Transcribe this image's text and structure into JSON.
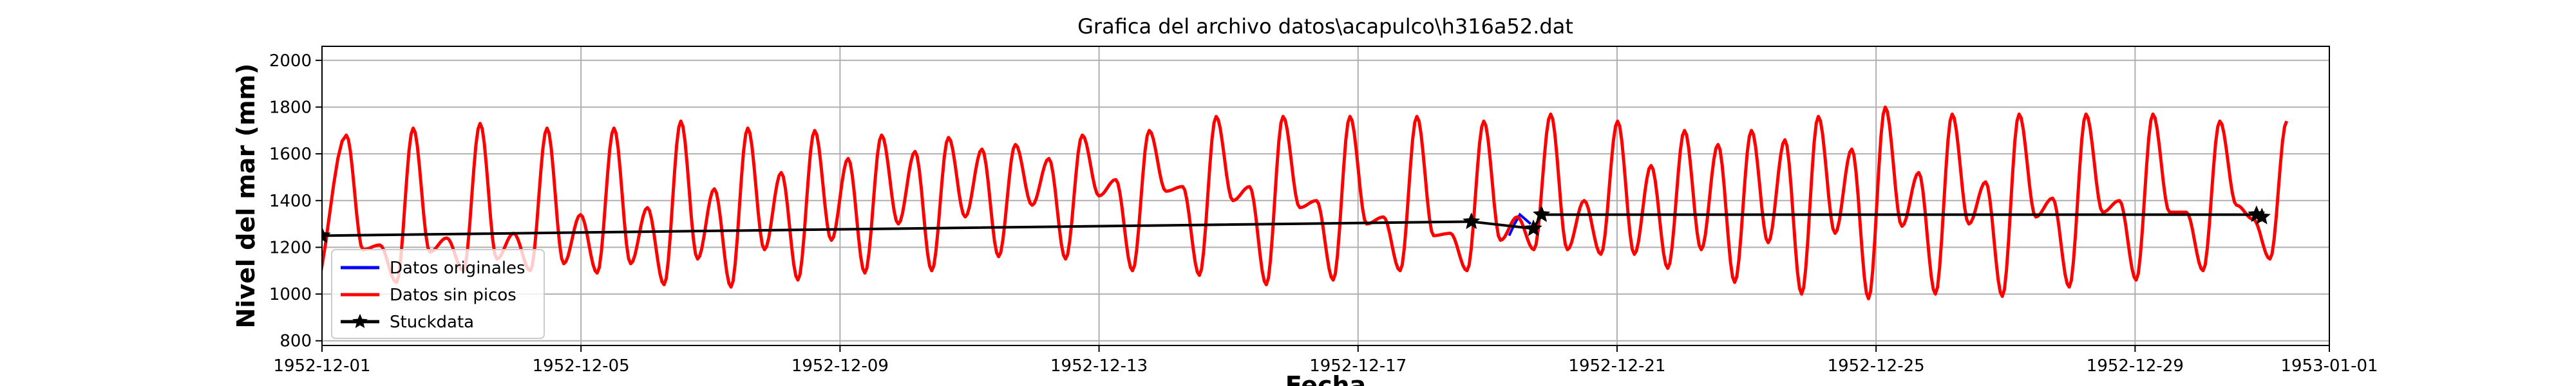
{
  "chart_data": {
    "type": "line",
    "title": "Grafica del archivo datos\\acapulco\\h316a52.dat",
    "xlabel": "Fecha",
    "ylabel": "Nivel del mar (mm)",
    "xlim": [
      "1952-12-01",
      "1953-01-01"
    ],
    "ylim": [
      780,
      2060
    ],
    "grid": true,
    "legend_position": "lower-left",
    "x_ticks": [
      "1952-12-01",
      "1952-12-05",
      "1952-12-09",
      "1952-12-13",
      "1952-12-17",
      "1952-12-21",
      "1952-12-25",
      "1952-12-29",
      "1953-01-01"
    ],
    "y_ticks": [
      800,
      1000,
      1200,
      1400,
      1600,
      1800,
      2000
    ],
    "legend": [
      "Datos originales",
      "Datos sin picos",
      "Stuckdata"
    ],
    "series": [
      {
        "name": "Datos originales",
        "color": "#0000ff",
        "note": "hidden beneath Datos sin picos except for short segments",
        "x": [
          "1952-12-19 08:00",
          "1952-12-19 10:00",
          "1952-12-19 12:00",
          "1952-12-19 14:00",
          "1952-12-19 16:00"
        ],
        "y": [
          1250,
          1300,
          1340,
          1320,
          1300
        ]
      },
      {
        "name": "Datos sin picos",
        "color": "#ff0000",
        "cycle_hours": 24.8,
        "first_peak": "1952-12-01 09:00",
        "peaks": [
          1680,
          1710,
          1730,
          1710,
          1710,
          1740,
          1710,
          1700,
          1680,
          1670,
          1640,
          1680,
          1700,
          1760,
          1760,
          1760,
          1760,
          1740,
          1770,
          1740,
          1700,
          1700,
          1760,
          1800,
          1770,
          1770,
          1770,
          1770,
          1740
        ],
        "troughs": [
          1000,
          1050,
          1100,
          1100,
          1090,
          1040,
          1030,
          1060,
          1090,
          1100,
          1160,
          1150,
          1100,
          1080,
          1040,
          1060,
          1100,
          1100,
          1190,
          1170,
          1110,
          1050,
          1000,
          980,
          1000,
          990,
          1030,
          1060,
          1100,
          1150
        ],
        "secondary_highs": [
          1210,
          1240,
          1260,
          1340,
          1370,
          1450,
          1520,
          1580,
          1610,
          1620,
          1580,
          1490,
          1460,
          1460,
          1400,
          1330,
          1260,
          1330,
          1400,
          1550,
          1640,
          1660,
          1620,
          1520,
          1480,
          1410,
          1400,
          1350,
          1320,
          1310
        ],
        "secondary_lows": [
          1190,
          1180,
          1150,
          1130,
          1130,
          1150,
          1190,
          1230,
          1300,
          1330,
          1380,
          1420,
          1440,
          1400,
          1370,
          1300,
          1250,
          1230,
          1190,
          1170,
          1190,
          1220,
          1260,
          1290,
          1300,
          1330,
          1350,
          1350,
          1380,
          1300
        ]
      },
      {
        "name": "Stuckdata",
        "color": "#000000",
        "marker": "star",
        "x": [
          "1952-12-01 00:00",
          "1952-12-18 18:00",
          "1952-12-19 17:00",
          "1952-12-19 20:00",
          "1952-12-30 21:00",
          "1952-12-30 23:00"
        ],
        "y": [
          1250,
          1310,
          1280,
          1340,
          1340,
          1330
        ]
      }
    ]
  }
}
